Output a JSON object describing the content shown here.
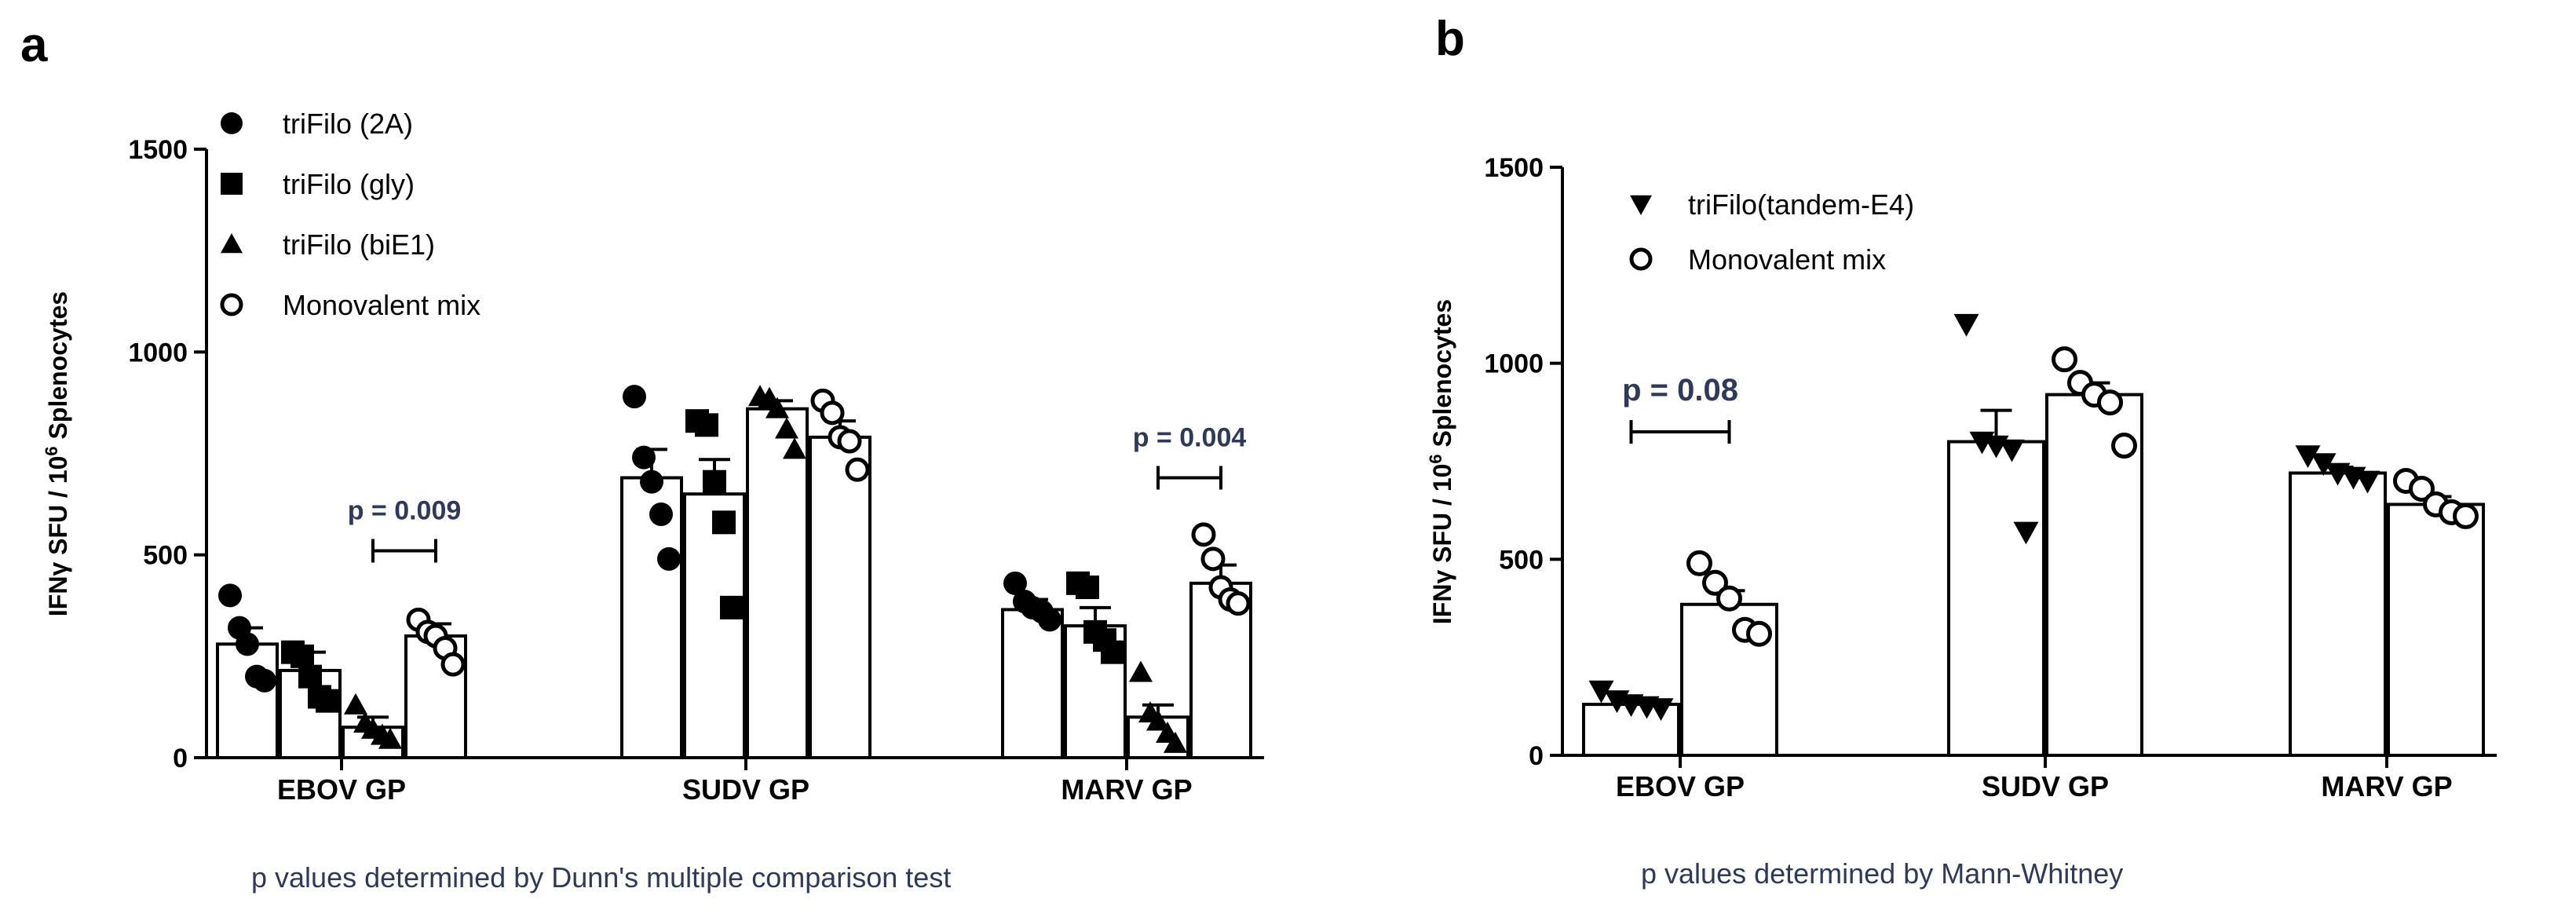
{
  "chart_data": [
    {
      "panel": "a",
      "type": "bar",
      "ylabel_prefix": "IFNγ SFU / 10",
      "ylabel_sup": "6",
      "ylabel_suffix": " Splenocytes",
      "ylim": [
        0,
        1500
      ],
      "yticks": [
        0,
        500,
        1000,
        1500
      ],
      "categories": [
        "EBOV GP",
        "SUDV GP",
        "MARV GP"
      ],
      "series": [
        {
          "name": "triFilo (2A)",
          "marker": "circle-filled",
          "values": [
            280,
            690,
            365
          ],
          "sem": [
            40,
            70,
            25
          ],
          "points": [
            [
              400,
              320,
              280,
              200,
              190
            ],
            [
              890,
              740,
              680,
              600,
              490
            ],
            [
              430,
              385,
              370,
              360,
              340
            ]
          ]
        },
        {
          "name": "triFilo (gly)",
          "marker": "square-filled",
          "values": [
            215,
            650,
            325
          ],
          "sem": [
            45,
            85,
            45
          ],
          "points": [
            [
              260,
              250,
              200,
              150,
              140
            ],
            [
              830,
              820,
              680,
              580,
              370
            ],
            [
              430,
              420,
              310,
              290,
              260
            ]
          ]
        },
        {
          "name": "triFilo (biE1)",
          "marker": "triangle-filled",
          "values": [
            75,
            860,
            100
          ],
          "sem": [
            25,
            20,
            30
          ],
          "points": [
            [
              130,
              85,
              70,
              55,
              45
            ],
            [
              890,
              885,
              860,
              810,
              760
            ],
            [
              210,
              110,
              90,
              60,
              35
            ]
          ]
        },
        {
          "name": "Monovalent mix",
          "marker": "circle-open",
          "values": [
            300,
            790,
            430
          ],
          "sem": [
            30,
            40,
            45
          ],
          "points": [
            [
              340,
              310,
              300,
              270,
              230
            ],
            [
              880,
              850,
              790,
              780,
              710
            ],
            [
              550,
              490,
              420,
              390,
              380
            ]
          ]
        }
      ],
      "annotations": [
        {
          "text": "p = 0.009",
          "category_index": 0,
          "from_series": 2,
          "to_series": 3,
          "y": 510
        },
        {
          "text": "p = 0.004",
          "category_index": 2,
          "from_series": 2,
          "to_series": 3,
          "y": 690
        }
      ],
      "footnote": "p values determined by Dunn's multiple comparison test"
    },
    {
      "panel": "b",
      "type": "bar",
      "ylabel_prefix": "IFNγ SFU / 10",
      "ylabel_sup": "6",
      "ylabel_suffix": " Splenocytes",
      "ylim": [
        0,
        1500
      ],
      "yticks": [
        0,
        500,
        1000,
        1500
      ],
      "categories": [
        "EBOV GP",
        "SUDV GP",
        "MARV GP"
      ],
      "series": [
        {
          "name": "triFilo(tandem-E4)",
          "marker": "triangle-down-filled",
          "values": [
            130,
            800,
            720
          ],
          "sem": [
            10,
            80,
            15
          ],
          "points": [
            [
              165,
              140,
              130,
              125,
              120
            ],
            [
              1100,
              800,
              790,
              780,
              570
            ],
            [
              765,
              745,
              720,
              710,
              700
            ]
          ]
        },
        {
          "name": "Monovalent mix",
          "marker": "circle-open",
          "values": [
            385,
            920,
            640
          ],
          "sem": [
            35,
            30,
            20
          ],
          "points": [
            [
              490,
              440,
              400,
              320,
              310
            ],
            [
              1010,
              950,
              920,
              900,
              790
            ],
            [
              700,
              680,
              640,
              620,
              610
            ]
          ]
        }
      ],
      "annotations": [
        {
          "text": "p = 0.08",
          "category_index": 0,
          "from_series": 0,
          "to_series": 1,
          "y": 825
        }
      ],
      "footnote": "p values determined by Mann-Whitney"
    }
  ]
}
